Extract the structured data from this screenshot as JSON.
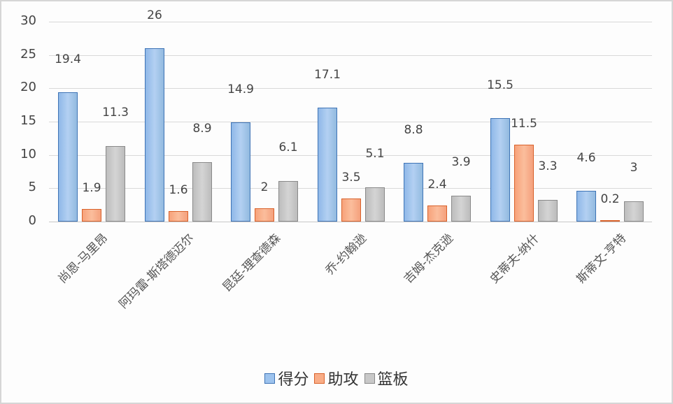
{
  "chart_data": {
    "type": "bar",
    "title": "",
    "xlabel": "",
    "ylabel": "",
    "ylim": [
      0,
      30
    ],
    "yticks": [
      0,
      5,
      10,
      15,
      20,
      25,
      30
    ],
    "grid": true,
    "legend_position": "bottom",
    "categories": [
      "尚恩-马里昂",
      "阿玛雷-斯塔德迈尔",
      "昆廷-理查德森",
      "乔-约翰逊",
      "吉姆-杰克逊",
      "史蒂夫-纳什",
      "斯蒂文-亨特"
    ],
    "series": [
      {
        "name": "得分",
        "color": "#9dc3ee",
        "values": [
          19.4,
          26,
          14.9,
          17.1,
          8.8,
          15.5,
          4.6
        ]
      },
      {
        "name": "助攻",
        "color": "#f9ad87",
        "values": [
          1.9,
          1.6,
          2,
          3.5,
          2.4,
          11.5,
          0.2
        ]
      },
      {
        "name": "篮板",
        "color": "#c8c8c8",
        "values": [
          11.3,
          8.9,
          6.1,
          5.1,
          3.9,
          3.3,
          3
        ]
      }
    ],
    "data_labels": [
      [
        "19.4",
        "26",
        "14.9",
        "17.1",
        "8.8",
        "15.5",
        "4.6"
      ],
      [
        "1.9",
        "1.6",
        "2",
        "3.5",
        "2.4",
        "11.5",
        "0.2"
      ],
      [
        "11.3",
        "8.9",
        "6.1",
        "5.1",
        "3.9",
        "3.3",
        "3"
      ]
    ]
  },
  "legend": {
    "items": [
      {
        "label": "得分",
        "color": "#9dc3ee",
        "border": "#3f74b6"
      },
      {
        "label": "助攻",
        "color": "#f9ad87",
        "border": "#d9622b"
      },
      {
        "label": "篮板",
        "color": "#c8c8c8",
        "border": "#8a8a8a"
      }
    ]
  }
}
